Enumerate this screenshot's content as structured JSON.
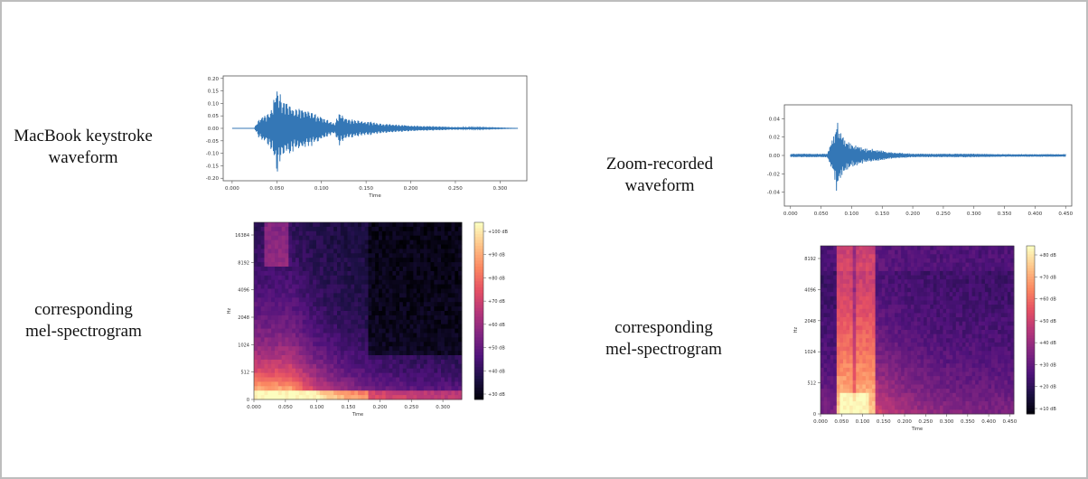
{
  "captions": {
    "left_waveform": [
      "MacBook keystroke",
      "waveform"
    ],
    "left_mel": [
      "corresponding",
      "mel-spectrogram"
    ],
    "right_waveform": [
      "Zoom-recorded",
      "waveform"
    ],
    "right_mel": [
      "corresponding",
      "mel-spectrogram"
    ]
  },
  "colors": {
    "waveform": "#3477b6",
    "background": "#ffffff"
  },
  "chart_data": [
    {
      "type": "line",
      "xlabel": "Time",
      "xlim": [
        -0.01,
        0.33
      ],
      "ylim": [
        -0.21,
        0.21
      ],
      "xticks": [
        "0.000",
        "0.050",
        "0.100",
        "0.150",
        "0.200",
        "0.250",
        "0.300"
      ],
      "xtick_values": [
        0,
        0.05,
        0.1,
        0.15,
        0.2,
        0.25,
        0.3
      ],
      "yticks": [
        "0.20",
        "0.15",
        "0.10",
        "0.05",
        "0.00",
        "-0.05",
        "-0.10",
        "-0.15",
        "-0.20"
      ],
      "ytick_values": [
        0.2,
        0.15,
        0.1,
        0.05,
        0,
        -0.05,
        -0.1,
        -0.15,
        -0.2
      ],
      "envelope": {
        "x": [
          0.0,
          0.025,
          0.03,
          0.038,
          0.045,
          0.05,
          0.055,
          0.06,
          0.07,
          0.08,
          0.09,
          0.1,
          0.11,
          0.115,
          0.12,
          0.125,
          0.13,
          0.14,
          0.15,
          0.17,
          0.2,
          0.24,
          0.28,
          0.32
        ],
        "amp": [
          0.0,
          0.0,
          0.04,
          0.06,
          0.09,
          0.19,
          0.13,
          0.12,
          0.09,
          0.08,
          0.07,
          0.05,
          0.03,
          0.02,
          0.07,
          0.05,
          0.04,
          0.035,
          0.03,
          0.02,
          0.012,
          0.007,
          0.003,
          0.0
        ]
      }
    },
    {
      "type": "heatmap",
      "xlabel": "Time",
      "ylabel": "Hz",
      "xlim": [
        0,
        0.33
      ],
      "xticks": [
        "0.000",
        "0.050",
        "0.100",
        "0.150",
        "0.200",
        "0.250",
        "0.300"
      ],
      "xtick_values": [
        0,
        0.05,
        0.1,
        0.15,
        0.2,
        0.25,
        0.3
      ],
      "yticks": [
        "16384",
        "8192",
        "4096",
        "2048",
        "1024",
        "512",
        "0"
      ],
      "colorbar": {
        "labels": [
          "+100 dB",
          "+90 dB",
          "+80 dB",
          "+70 dB",
          "+60 dB",
          "+50 dB",
          "+40 dB",
          "+30 dB"
        ],
        "range": [
          25,
          105
        ]
      },
      "colormap": "magma"
    },
    {
      "type": "line",
      "xlabel": "",
      "xlim": [
        -0.01,
        0.46
      ],
      "ylim": [
        -0.055,
        0.055
      ],
      "xticks": [
        "0.000",
        "0.050",
        "0.100",
        "0.150",
        "0.200",
        "0.250",
        "0.300",
        "0.350",
        "0.400",
        "0.450"
      ],
      "xtick_values": [
        0,
        0.05,
        0.1,
        0.15,
        0.2,
        0.25,
        0.3,
        0.35,
        0.4,
        0.45
      ],
      "yticks": [
        "0.04",
        "0.02",
        "0.00",
        "-0.02",
        "-0.04"
      ],
      "ytick_values": [
        0.04,
        0.02,
        0,
        -0.02,
        -0.04
      ],
      "envelope": {
        "x": [
          0.0,
          0.06,
          0.065,
          0.072,
          0.076,
          0.08,
          0.09,
          0.1,
          0.11,
          0.12,
          0.14,
          0.16,
          0.2,
          0.25,
          0.3,
          0.35,
          0.4,
          0.45
        ],
        "amp": [
          0.002,
          0.002,
          0.012,
          0.025,
          0.045,
          0.03,
          0.018,
          0.012,
          0.012,
          0.008,
          0.007,
          0.004,
          0.002,
          0.002,
          0.002,
          0.0015,
          0.0015,
          0.0015
        ]
      }
    },
    {
      "type": "heatmap",
      "xlabel": "Time",
      "ylabel": "Hz",
      "xlim": [
        0,
        0.46
      ],
      "xticks": [
        "0.000",
        "0.050",
        "0.100",
        "0.150",
        "0.200",
        "0.250",
        "0.300",
        "0.350",
        "0.400",
        "0.450"
      ],
      "xtick_values": [
        0,
        0.05,
        0.1,
        0.15,
        0.2,
        0.25,
        0.3,
        0.35,
        0.4,
        0.45
      ],
      "yticks": [
        "8192",
        "4096",
        "2048",
        "1024",
        "512",
        "0"
      ],
      "colorbar": {
        "labels": [
          "+80 dB",
          "+70 dB",
          "+60 dB",
          "+50 dB",
          "+40 dB",
          "+30 dB",
          "+20 dB",
          "+10 dB"
        ],
        "range": [
          0,
          85
        ]
      },
      "colormap": "magma"
    }
  ]
}
